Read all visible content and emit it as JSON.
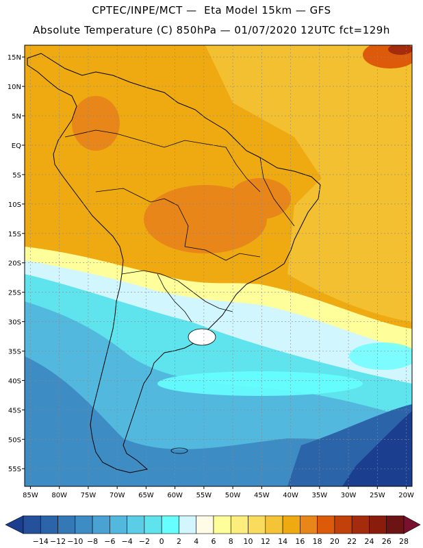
{
  "header": {
    "line1": "CPTEC/INPE/MCT —  Eta Model 15km — GFS",
    "line2": "Absolute Temperature (C) 850hPa — 01/07/2020 12UTC fct=129h"
  },
  "map": {
    "lat_labels": [
      "15N",
      "10N",
      "5N",
      "EQ",
      "5S",
      "10S",
      "15S",
      "20S",
      "25S",
      "30S",
      "35S",
      "40S",
      "45S",
      "50S",
      "55S"
    ],
    "lat_values": [
      15,
      10,
      5,
      0,
      -5,
      -10,
      -15,
      -20,
      -25,
      -30,
      -35,
      -40,
      -45,
      -50,
      -55
    ],
    "lon_labels": [
      "85W",
      "80W",
      "75W",
      "70W",
      "65W",
      "60W",
      "55W",
      "50W",
      "45W",
      "40W",
      "35W",
      "30W",
      "25W",
      "20W"
    ],
    "lon_values": [
      -85,
      -80,
      -75,
      -70,
      -65,
      -60,
      -55,
      -50,
      -45,
      -40,
      -35,
      -30,
      -25,
      -20
    ],
    "lat_range": [
      -58,
      17
    ],
    "lon_range": [
      -86,
      -19
    ]
  },
  "colorbar": {
    "labels": [
      "-14",
      "-12",
      "-10",
      "-8",
      "-6",
      "-4",
      "-2",
      "0",
      "2",
      "4",
      "6",
      "8",
      "10",
      "12",
      "14",
      "16",
      "18",
      "20",
      "22",
      "24",
      "26",
      "28"
    ],
    "colors": [
      "#1c3e8f",
      "#24509c",
      "#2c64aa",
      "#3478b6",
      "#3d8cc4",
      "#4aa2d2",
      "#52b8de",
      "#5ccde6",
      "#5fe4ee",
      "#66fefe",
      "#d2f6fe",
      "#fffbe6",
      "#fefe9a",
      "#fbee7c",
      "#fadc5c",
      "#f2c436",
      "#eeaa10",
      "#e8861a",
      "#dc5a0a",
      "#c2400a",
      "#a42c0c",
      "#8a1c0c",
      "#6c1414",
      "#7a1030"
    ]
  }
}
